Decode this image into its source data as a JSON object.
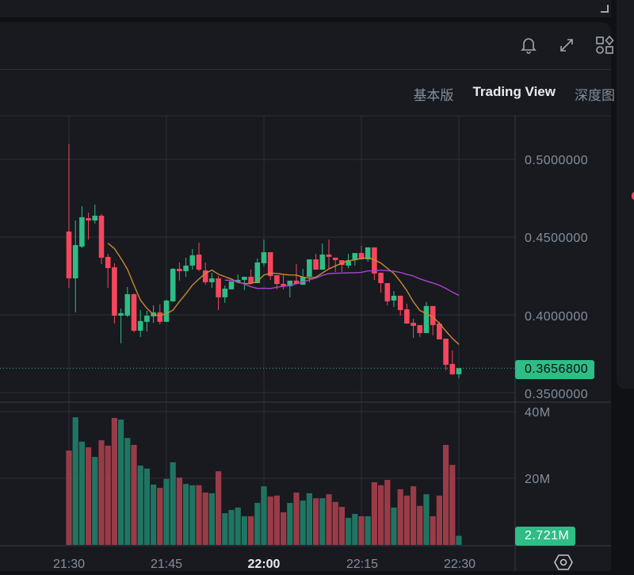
{
  "header": {
    "icons": [
      "bell-icon",
      "expand-icon",
      "widgets-icon"
    ],
    "tabs": [
      {
        "label": "基本版",
        "active": false
      },
      {
        "label": "Trading View",
        "active": true
      },
      {
        "label": "深度图",
        "active": false
      }
    ]
  },
  "colors": {
    "up": "#2ebd85",
    "down": "#f6465d",
    "vol_up": "#1f7561",
    "vol_down": "#9a3b48",
    "ma_short": "#c98a2e",
    "ma_long": "#b03fd0",
    "badge": "#2ebd85"
  },
  "price_axis": {
    "labels": [
      "0.5000000",
      "0.4500000",
      "0.4000000",
      "0.3500000"
    ],
    "current_price": "0.3656800"
  },
  "volume_axis": {
    "labels": [
      "40M",
      "20M"
    ],
    "current_volume": "2.721M"
  },
  "time_axis": {
    "labels": [
      "21:30",
      "21:45",
      "22:00",
      "22:15",
      "22:30"
    ],
    "bold_index": 2
  },
  "chart_data": {
    "type": "candlestick",
    "interval": "1m",
    "x": [
      "21:30",
      "21:31",
      "21:32",
      "21:33",
      "21:34",
      "21:35",
      "21:36",
      "21:37",
      "21:38",
      "21:39",
      "21:40",
      "21:41",
      "21:42",
      "21:43",
      "21:44",
      "21:45",
      "21:46",
      "21:47",
      "21:48",
      "21:49",
      "21:50",
      "21:51",
      "21:52",
      "21:53",
      "21:54",
      "21:55",
      "21:56",
      "21:57",
      "21:58",
      "21:59",
      "22:00",
      "22:01",
      "22:02",
      "22:03",
      "22:04",
      "22:05",
      "22:06",
      "22:07",
      "22:08",
      "22:09",
      "22:10",
      "22:11",
      "22:12",
      "22:13",
      "22:14",
      "22:15",
      "22:16",
      "22:17",
      "22:18",
      "22:19",
      "22:20",
      "22:21",
      "22:22",
      "22:23",
      "22:24",
      "22:25",
      "22:26",
      "22:27",
      "22:28",
      "22:29",
      "22:30"
    ],
    "ohlc": [
      [
        0.4536,
        0.51,
        0.4174,
        0.4235
      ],
      [
        0.4235,
        0.4607,
        0.4016,
        0.4449
      ],
      [
        0.4439,
        0.4699,
        0.4429,
        0.4628
      ],
      [
        0.4622,
        0.4658,
        0.4485,
        0.4607
      ],
      [
        0.4607,
        0.4709,
        0.4587,
        0.4638
      ],
      [
        0.4638,
        0.4648,
        0.4327,
        0.4368
      ],
      [
        0.4373,
        0.4393,
        0.4174,
        0.4301
      ],
      [
        0.4306,
        0.4332,
        0.3944,
        0.3995
      ],
      [
        0.3995,
        0.4041,
        0.3817,
        0.4011
      ],
      [
        0.3995,
        0.4179,
        0.3985,
        0.4133
      ],
      [
        0.4133,
        0.4138,
        0.3888,
        0.3898
      ],
      [
        0.3898,
        0.4031,
        0.3858,
        0.396
      ],
      [
        0.3955,
        0.4026,
        0.3893,
        0.3995
      ],
      [
        0.399,
        0.4062,
        0.3949,
        0.4016
      ],
      [
        0.4016,
        0.4067,
        0.3939,
        0.3955
      ],
      [
        0.3955,
        0.4097,
        0.3955,
        0.4092
      ],
      [
        0.4087,
        0.4301,
        0.4082,
        0.4296
      ],
      [
        0.4296,
        0.4337,
        0.422,
        0.4281
      ],
      [
        0.4281,
        0.4368,
        0.4245,
        0.4317
      ],
      [
        0.4317,
        0.4424,
        0.4291,
        0.4383
      ],
      [
        0.4388,
        0.4464,
        0.4281,
        0.4291
      ],
      [
        0.4286,
        0.4337,
        0.4194,
        0.421
      ],
      [
        0.421,
        0.4271,
        0.4174,
        0.4235
      ],
      [
        0.4235,
        0.425,
        0.4031,
        0.4113
      ],
      [
        0.4113,
        0.4189,
        0.4077,
        0.4169
      ],
      [
        0.4164,
        0.4215,
        0.4164,
        0.4215
      ],
      [
        0.421,
        0.426,
        0.4204,
        0.4225
      ],
      [
        0.4225,
        0.4245,
        0.4159,
        0.4245
      ],
      [
        0.4245,
        0.4291,
        0.4204,
        0.4204
      ],
      [
        0.4204,
        0.4362,
        0.4204,
        0.4337
      ],
      [
        0.4332,
        0.4485,
        0.4312,
        0.4403
      ],
      [
        0.4403,
        0.4403,
        0.4225,
        0.425
      ],
      [
        0.4255,
        0.4255,
        0.4164,
        0.4199
      ],
      [
        0.4199,
        0.4255,
        0.4164,
        0.4184
      ],
      [
        0.4184,
        0.422,
        0.4113,
        0.422
      ],
      [
        0.422,
        0.4327,
        0.4199,
        0.4199
      ],
      [
        0.4194,
        0.4296,
        0.4194,
        0.4245
      ],
      [
        0.4245,
        0.4357,
        0.421,
        0.4357
      ],
      [
        0.4357,
        0.4393,
        0.4291,
        0.4291
      ],
      [
        0.4291,
        0.4459,
        0.4291,
        0.4388
      ],
      [
        0.4388,
        0.4485,
        0.4291,
        0.4373
      ],
      [
        0.4368,
        0.4368,
        0.4276,
        0.4352
      ],
      [
        0.4352,
        0.4352,
        0.4276,
        0.4321
      ],
      [
        0.4317,
        0.4393,
        0.4301,
        0.4352
      ],
      [
        0.4352,
        0.4398,
        0.4317,
        0.4398
      ],
      [
        0.4398,
        0.4444,
        0.4357,
        0.4357
      ],
      [
        0.4357,
        0.4434,
        0.4342,
        0.4434
      ],
      [
        0.4434,
        0.4434,
        0.4225,
        0.4266
      ],
      [
        0.4271,
        0.4271,
        0.4143,
        0.4204
      ],
      [
        0.4204,
        0.4204,
        0.4062,
        0.4087
      ],
      [
        0.4092,
        0.4153,
        0.4051,
        0.4123
      ],
      [
        0.4123,
        0.4123,
        0.3995,
        0.4031
      ],
      [
        0.4036,
        0.4072,
        0.3944,
        0.3944
      ],
      [
        0.3949,
        0.3975,
        0.3852,
        0.3929
      ],
      [
        0.3934,
        0.3934,
        0.3858,
        0.3883
      ],
      [
        0.3883,
        0.4082,
        0.3883,
        0.4057
      ],
      [
        0.4057,
        0.4057,
        0.3868,
        0.3934
      ],
      [
        0.3944,
        0.3955,
        0.3842,
        0.3842
      ],
      [
        0.3847,
        0.3847,
        0.3643,
        0.3679
      ],
      [
        0.3684,
        0.3771,
        0.3613,
        0.3618
      ],
      [
        0.3618,
        0.3657,
        0.3592,
        0.3657
      ]
    ],
    "volume_millions": [
      28.3,
      38.3,
      31.0,
      29.3,
      26.4,
      31.4,
      29.8,
      38.1,
      37.6,
      32.1,
      30.0,
      23.8,
      22.9,
      18.1,
      17.1,
      19.8,
      24.8,
      20.2,
      18.3,
      17.9,
      17.9,
      15.7,
      15.5,
      22.1,
      9.5,
      10.5,
      11.2,
      8.6,
      8.6,
      12.6,
      17.6,
      14.5,
      14.8,
      9.8,
      12.6,
      15.7,
      13.3,
      15.5,
      14.0,
      14.0,
      15.2,
      12.9,
      11.4,
      8.1,
      9.3,
      8.6,
      8.6,
      18.8,
      17.9,
      19.5,
      11.2,
      16.7,
      14.8,
      17.6,
      11.7,
      15.2,
      8.6,
      14.8,
      30.0,
      24.0,
      2.721
    ],
    "moving_averages": [
      {
        "period": 7,
        "color": "#c98a2e"
      },
      {
        "period": 25,
        "color": "#b03fd0"
      }
    ],
    "ylim": [
      0.345,
      0.52
    ],
    "volume_ylim": [
      0,
      40
    ],
    "grid": true
  }
}
